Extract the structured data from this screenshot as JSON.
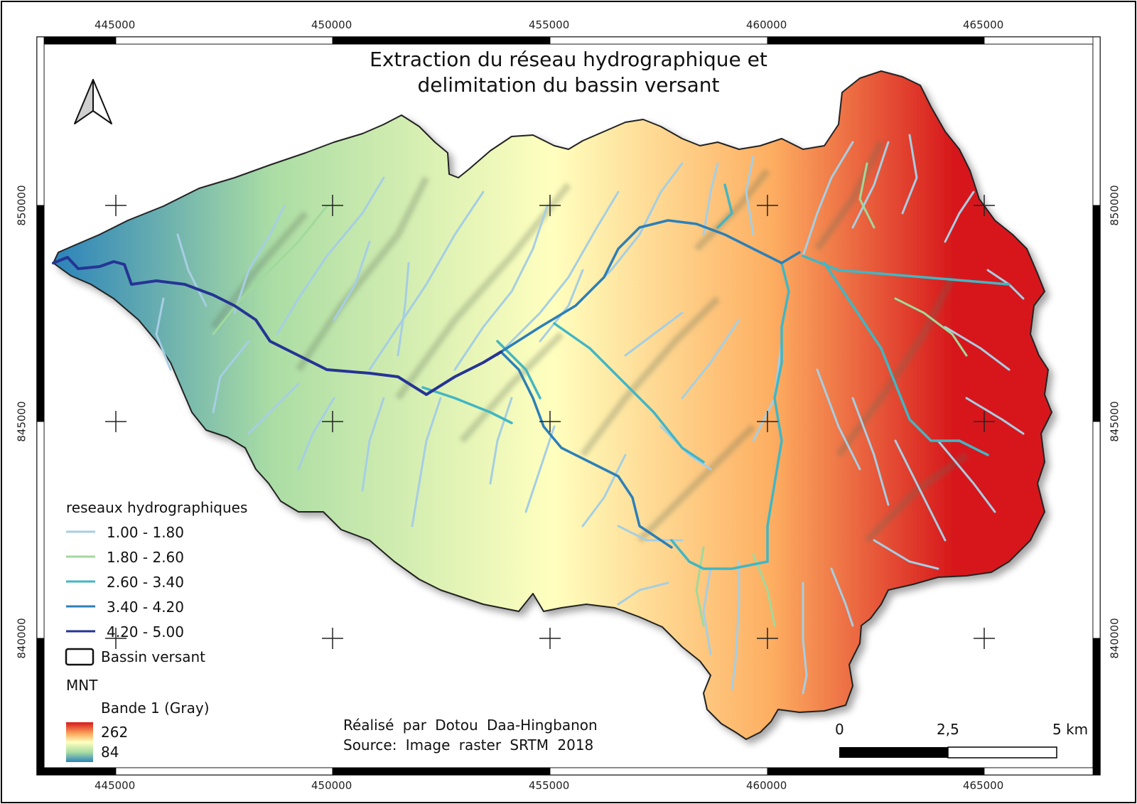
{
  "map": {
    "title_line1": "Extraction du réseau hydrographique et",
    "title_line2": "delimitation du bassin versant",
    "north_arrow_icon": "north-arrow-icon",
    "credits": {
      "author": "Réalisé par Dotou Daa-Hingbanon",
      "source": "Source: Image raster SRTM 2018"
    },
    "scale_bar": {
      "labels": [
        "0",
        "2,5",
        "5 km"
      ]
    },
    "grid": {
      "x_labels": [
        "445000",
        "450000",
        "455000",
        "460000",
        "465000"
      ],
      "y_labels": [
        "850000",
        "845000",
        "840000"
      ]
    },
    "legend": {
      "network_title": "reseaux hydrographiques",
      "network_classes": [
        {
          "label": "1.00 - 1.80",
          "color": "#a6cee3"
        },
        {
          "label": "1.80 - 2.60",
          "color": "#a1d99b"
        },
        {
          "label": "2.60 - 3.40",
          "color": "#41b6c4"
        },
        {
          "label": "3.40 - 4.20",
          "color": "#2c7fb8"
        },
        {
          "label": "4.20 - 5.00",
          "color": "#253494"
        }
      ],
      "basin_label": "Bassin versant",
      "dem_title": "MNT",
      "dem_band": "Bande 1 (Gray)",
      "dem_max": "262",
      "dem_min": "84"
    }
  },
  "colors": {
    "frame": "#000000",
    "low_elevation": "#2b83ba",
    "mid_elevation": "#ffffbf",
    "high_elevation": "#d7191c"
  }
}
